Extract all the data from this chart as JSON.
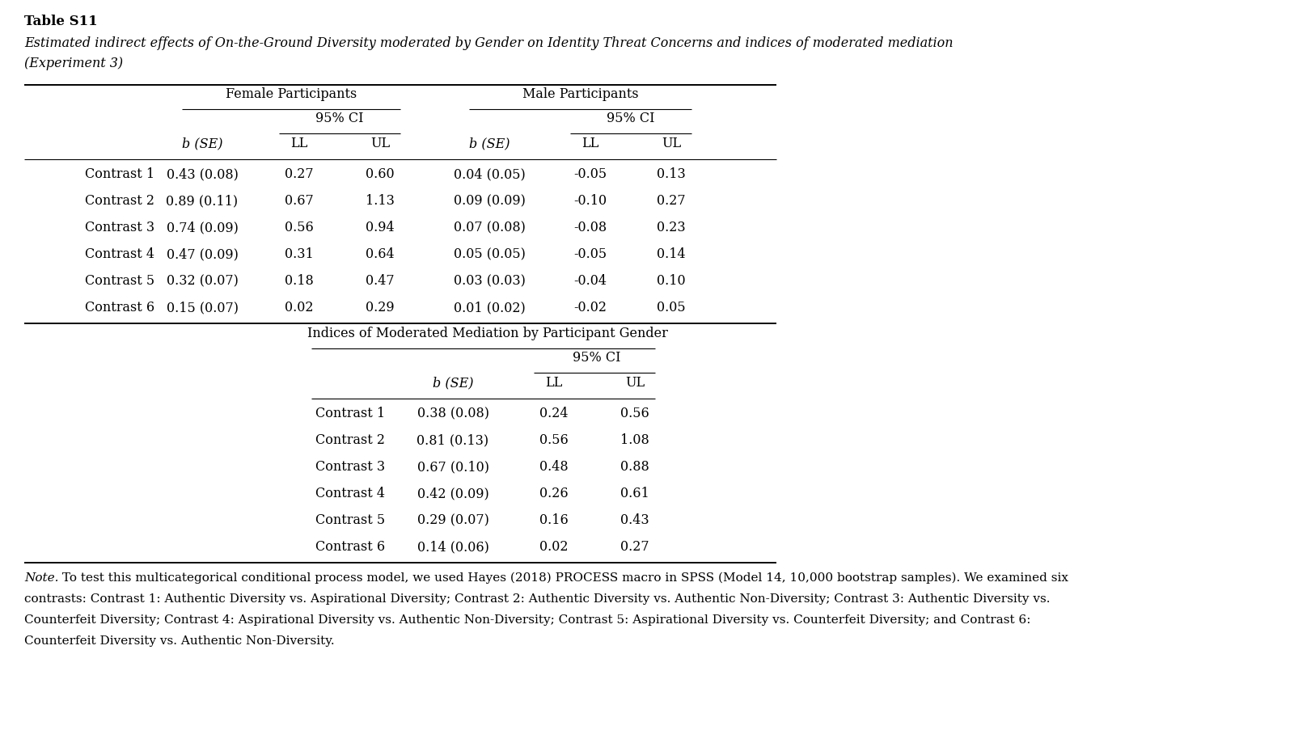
{
  "title": "Table S11",
  "subtitle": "Estimated indirect effects of On-the-Ground Diversity moderated by Gender on Identity Threat Concerns and indices of moderated mediation\n(Experiment 3)",
  "top_rows": [
    [
      "Contrast 1",
      "0.43 (0.08)",
      "0.27",
      "0.60",
      "0.04 (0.05)",
      "-0.05",
      "0.13"
    ],
    [
      "Contrast 2",
      "0.89 (0.11)",
      "0.67",
      "1.13",
      "0.09 (0.09)",
      "-0.10",
      "0.27"
    ],
    [
      "Contrast 3",
      "0.74 (0.09)",
      "0.56",
      "0.94",
      "0.07 (0.08)",
      "-0.08",
      "0.23"
    ],
    [
      "Contrast 4",
      "0.47 (0.09)",
      "0.31",
      "0.64",
      "0.05 (0.05)",
      "-0.05",
      "0.14"
    ],
    [
      "Contrast 5",
      "0.32 (0.07)",
      "0.18",
      "0.47",
      "0.03 (0.03)",
      "-0.04",
      "0.10"
    ],
    [
      "Contrast 6",
      "0.15 (0.07)",
      "0.02",
      "0.29",
      "0.01 (0.02)",
      "-0.02",
      "0.05"
    ]
  ],
  "bot_rows": [
    [
      "Contrast 1",
      "0.38 (0.08)",
      "0.24",
      "0.56"
    ],
    [
      "Contrast 2",
      "0.81 (0.13)",
      "0.56",
      "1.08"
    ],
    [
      "Contrast 3",
      "0.67 (0.10)",
      "0.48",
      "0.88"
    ],
    [
      "Contrast 4",
      "0.42 (0.09)",
      "0.26",
      "0.61"
    ],
    [
      "Contrast 5",
      "0.29 (0.07)",
      "0.16",
      "0.43"
    ],
    [
      "Contrast 6",
      "0.14 (0.06)",
      "0.02",
      "0.27"
    ]
  ],
  "note_italic": "Note.",
  "note_rest": " To test this multicategorical conditional process model, we used Hayes (2018) PROCESS macro in SPSS (Model 14, 10,000 bootstrap samples). We examined six\ncontrasts: Contrast 1: Authentic Diversity vs. Aspirational Diversity; Contrast 2: Authentic Diversity vs. Authentic Non-Diversity; Contrast 3: Authentic Diversity vs.\nCounterfeit Diversity; Contrast 4: Aspirational Diversity vs. Authentic Non-Diversity; Contrast 5: Aspirational Diversity vs. Counterfeit Diversity; and Contrast 6:\nCounterfeit Diversity vs. Authentic Non-Diversity.",
  "bg_color": "#ffffff",
  "text_color": "#000000"
}
